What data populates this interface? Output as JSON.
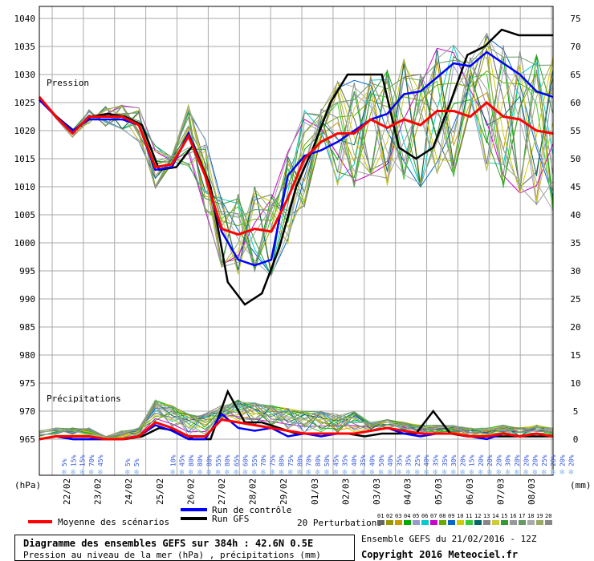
{
  "chart_data": {
    "type": "line",
    "left_axis": {
      "unit_label": "(hPa)",
      "range": [
        965,
        1040
      ],
      "ticks": [
        1040,
        1035,
        1030,
        1025,
        1020,
        1015,
        1010,
        1005,
        1000,
        995,
        990,
        985,
        980,
        975,
        970,
        965
      ]
    },
    "right_axis": {
      "unit_label": "(mm)",
      "range": [
        0,
        75
      ],
      "ticks": [
        75,
        70,
        65,
        60,
        55,
        50,
        45,
        40,
        35,
        30,
        25,
        20,
        15,
        10,
        5,
        0
      ]
    },
    "x_ticks": [
      "22/02",
      "23/02",
      "24/02",
      "25/02",
      "26/02",
      "27/02",
      "28/02",
      "29/02",
      "01/03",
      "02/03",
      "03/03",
      "04/03",
      "05/03",
      "06/03",
      "07/03",
      "08/03"
    ],
    "annotations": {
      "pressure_label": "Pression",
      "precip_label": "Précipitations"
    },
    "precip_probability_labels": [
      "5%",
      "15%",
      "15%",
      "70%",
      "45%",
      "",
      "",
      "5%",
      "5%",
      "",
      "",
      "",
      "10%",
      "45%",
      "80%",
      "80%",
      "80%",
      "55%",
      "80%",
      "65%",
      "60%",
      "55%",
      "70%",
      "75%",
      "80%",
      "75%",
      "80%",
      "70%",
      "80%",
      "50%",
      "45%",
      "35%",
      "40%",
      "35%",
      "40%",
      "50%",
      "40%",
      "35%",
      "35%",
      "25%",
      "40%",
      "35%",
      "35%",
      "30%",
      "20%",
      "15%",
      "20%",
      "20%",
      "20%",
      "30%",
      "20%",
      "20%",
      "20%",
      "25%",
      "20%",
      "20%",
      "20%"
    ],
    "series": [
      {
        "name": "Moyenne des scénarios",
        "color": "#ff0000",
        "pressure": [
          1026,
          1022.5,
          1019.5,
          1022.5,
          1022.5,
          1022.5,
          1021,
          1013.5,
          1014,
          1019,
          1012,
          1002.5,
          1001.5,
          1002.5,
          1002,
          1008,
          1015,
          1018,
          1019.5,
          1019.5,
          1022,
          1020.5,
          1022,
          1021,
          1023.5,
          1023.5,
          1022.5,
          1025,
          1022.5,
          1022,
          1020,
          1019.5
        ],
        "precip": [
          0,
          0.5,
          0.5,
          0.5,
          0,
          0,
          0.5,
          3,
          2,
          0.5,
          0.5,
          3.5,
          3,
          2.5,
          2,
          1.5,
          1,
          1,
          1,
          1,
          1.5,
          2,
          1.5,
          1,
          1,
          1,
          0.5,
          0.5,
          1,
          0.5,
          1,
          0.5
        ]
      },
      {
        "name": "Run de contrôle",
        "color": "#0000ff",
        "pressure": [
          1025.5,
          1022.5,
          1020,
          1022,
          1022,
          1022,
          1021,
          1013,
          1013.5,
          1019.5,
          1012,
          1002,
          997,
          996,
          997,
          1012,
          1015.5,
          1016.5,
          1018,
          1020,
          1022,
          1023,
          1026.5,
          1027,
          1029.5,
          1032,
          1031.5,
          1034,
          1032,
          1030,
          1027,
          1026
        ],
        "precip": [
          0,
          0.5,
          0,
          0,
          0,
          0,
          0.5,
          2.5,
          1.5,
          0,
          0,
          4.5,
          2,
          1.5,
          2,
          0.5,
          1,
          0.5,
          1,
          1,
          1.5,
          2,
          1,
          0.5,
          1,
          1,
          0.5,
          0,
          1,
          0.5,
          1,
          0.5
        ]
      },
      {
        "name": "Run GFS",
        "color": "#000000",
        "pressure": [
          1025.5,
          1022.5,
          1020,
          1022.5,
          1023,
          1022.5,
          1021,
          1013,
          1013.5,
          1017.5,
          1010,
          993,
          989,
          991,
          999,
          1010,
          1017,
          1025,
          1030,
          1030,
          1030,
          1017,
          1015,
          1017,
          1025,
          1033.5,
          1035,
          1038,
          1037,
          1037,
          1037
        ],
        "precip": [
          0,
          0.5,
          0,
          0,
          0,
          0,
          0.5,
          2,
          1.5,
          0,
          0,
          8.5,
          3,
          3,
          2,
          1,
          1,
          1,
          1,
          0.5,
          1,
          1,
          1,
          5,
          1,
          0.5,
          0.5,
          0.5,
          0.5,
          0.5,
          0.5
        ]
      }
    ],
    "perturbations": {
      "label": "20 Perturbations",
      "ids": [
        "01",
        "02",
        "03",
        "04",
        "05",
        "06",
        "07",
        "08",
        "09",
        "10",
        "11",
        "12",
        "13",
        "14",
        "15",
        "16",
        "17",
        "18",
        "19",
        "20"
      ],
      "colors": [
        "#666666",
        "#999900",
        "#cc9900",
        "#00aa00",
        "#9999cc",
        "#00cccc",
        "#cc00cc",
        "#66aa00",
        "#0066cc",
        "#cccc00",
        "#33cc33",
        "#006666",
        "#888888",
        "#cccc33",
        "#339933",
        "#999999",
        "#669966",
        "#aaaaaa",
        "#99aa66",
        "#888888"
      ]
    }
  },
  "legend": {
    "mean": "Moyenne des scénarios",
    "control": "Run de contrôle",
    "gfs": "Run GFS",
    "perturbations": "20 Perturbations"
  },
  "footer": {
    "title": "Diagramme des ensembles GEFS sur 384h : 42.6N 0.5E",
    "subtitle": "Pression au niveau de la mer (hPa) , précipitations (mm)",
    "ensemble_info": "Ensemble GEFS du 21/02/2016 - 12Z",
    "copyright": "Copyright 2016 Meteociel.fr"
  },
  "colors": {
    "mean": "#ff0000",
    "control": "#0000ff",
    "gfs": "#000000",
    "grid": "#999999",
    "snow_icon": "#88b8ee"
  }
}
